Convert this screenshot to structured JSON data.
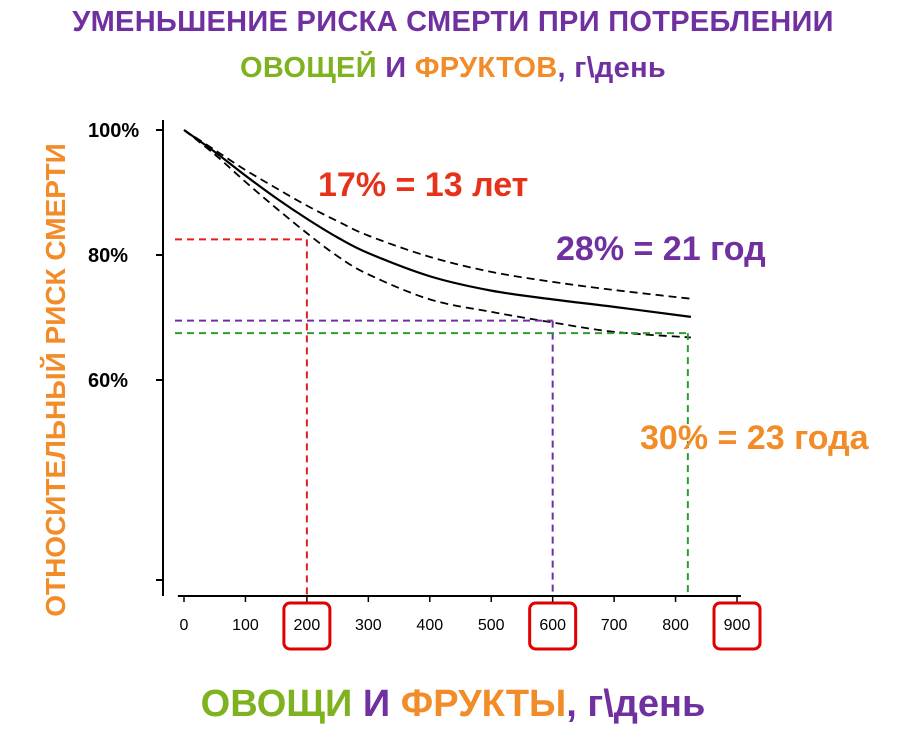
{
  "title": {
    "line1": "УМЕНЬШЕНИЕ РИСКА СМЕРТИ ПРИ ПОТРЕБЛЕНИИ",
    "line2": [
      {
        "text": "ОВОЩЕЙ",
        "color": "#7fb21f"
      },
      {
        "text": " И ",
        "color": "#7030a0"
      },
      {
        "text": "ФРУКТОВ",
        "color": "#f28c28"
      },
      {
        "text": ", г\\день",
        "color": "#7030a0"
      }
    ],
    "line1_color": "#7030a0"
  },
  "ylabel": "ОТНОСИТЕЛЬНЫЙ РИСК СМЕРТИ",
  "xlabel": [
    {
      "text": "ОВОЩИ",
      "color": "#7fb21f"
    },
    {
      "text": " И ",
      "color": "#7030a0"
    },
    {
      "text": "ФРУКТЫ",
      "color": "#f28c28"
    },
    {
      "text": ", г\\день",
      "color": "#7030a0"
    }
  ],
  "chart_data": {
    "type": "line",
    "x_ticks": [
      0,
      100,
      200,
      300,
      400,
      500,
      600,
      700,
      800,
      900
    ],
    "x_tick_labels": [
      "0",
      "100",
      "200",
      "300",
      "400",
      "500",
      "600",
      "700",
      "800",
      "900"
    ],
    "highlighted_x_ticks": [
      200,
      600,
      900
    ],
    "y_ticks": [
      100,
      80,
      60
    ],
    "y_tick_labels": [
      "100%",
      "80%",
      "60%"
    ],
    "ylim": [
      32,
      100
    ],
    "xlim": [
      -15,
      910
    ],
    "grid": false,
    "series": [
      {
        "style": "solid",
        "x": [
          0,
          50,
          100,
          150,
          200,
          250,
          300,
          400,
          500,
          600,
          700,
          825
        ],
        "y": [
          100,
          96.5,
          92.7,
          89.1,
          85.8,
          82.8,
          80.3,
          76.6,
          74.3,
          72.9,
          71.7,
          70.1
        ]
      },
      {
        "style": "dashed",
        "x": [
          0,
          50,
          100,
          150,
          200,
          250,
          300,
          400,
          500,
          600,
          700,
          825
        ],
        "y": [
          100,
          96.8,
          93.6,
          90.7,
          87.9,
          85.4,
          83.1,
          79.7,
          77.3,
          75.7,
          74.4,
          73
        ]
      },
      {
        "style": "dashed",
        "x": [
          0,
          50,
          100,
          150,
          200,
          250,
          300,
          400,
          500,
          600,
          700,
          825
        ],
        "y": [
          100,
          96.1,
          91.7,
          87.5,
          83.5,
          79.8,
          76.9,
          72.9,
          70.9,
          69.2,
          67.7,
          66.8
        ]
      }
    ],
    "reference_lines": [
      {
        "x": 200,
        "y": 82.5,
        "color": "#e0201f"
      },
      {
        "x": 600,
        "y": 69.5,
        "color": "#7030a0"
      },
      {
        "x": 820,
        "y": 67.5,
        "color": "#2e9b2e"
      }
    ],
    "annotations": [
      {
        "text": "17% = 13 лет",
        "color": "#e8311a"
      },
      {
        "text": "28% = 21 год",
        "color": "#7030a0"
      },
      {
        "text": "30% = 23 года",
        "color": "#f28c28"
      }
    ]
  }
}
